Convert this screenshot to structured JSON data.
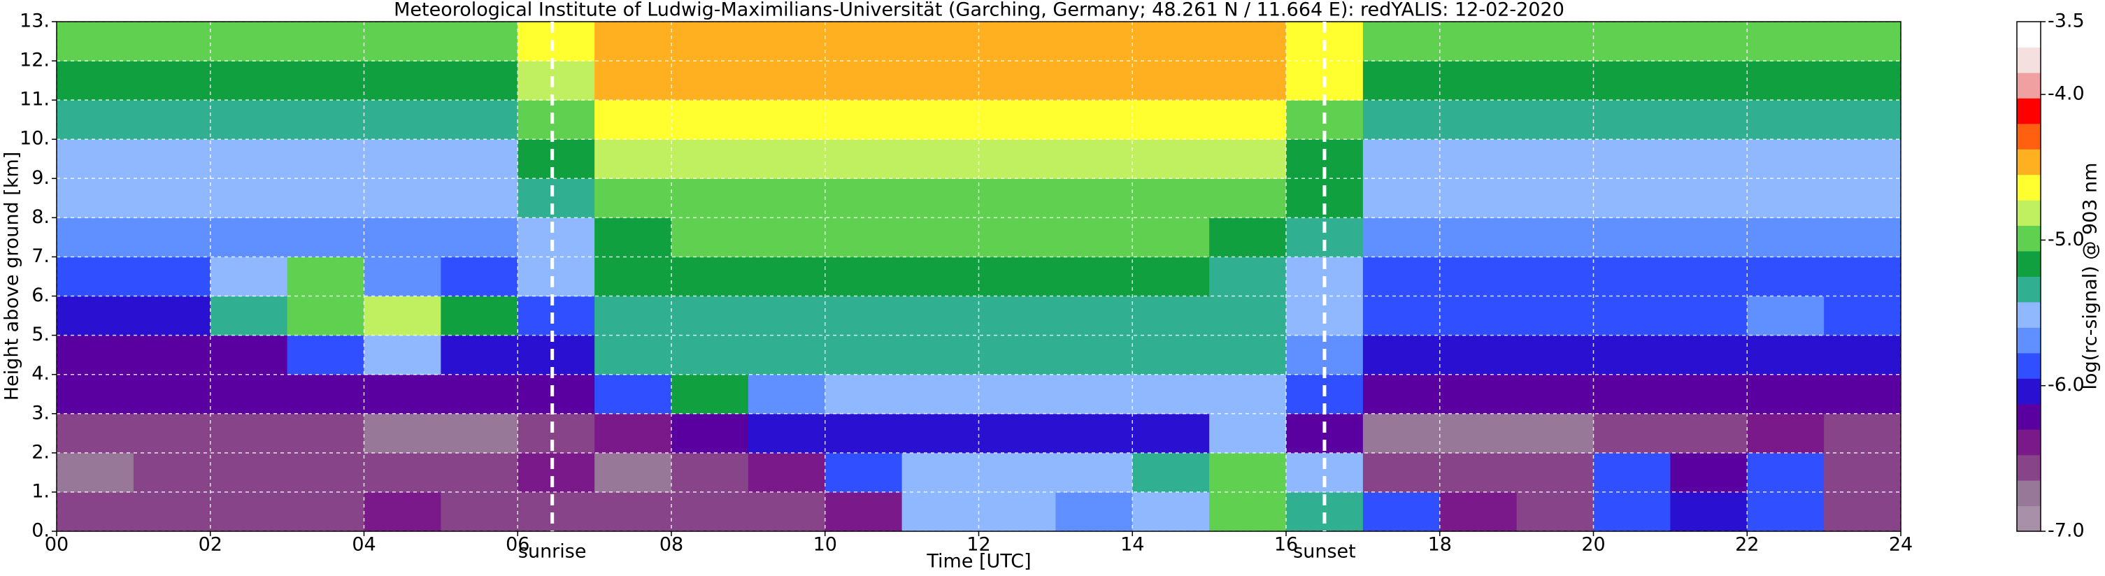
{
  "chart_data": {
    "type": "heatmap",
    "title": "Meteorological Institute of Ludwig-Maximilians-Universität (Garching, Germany; 48.261 N / 11.664 E):    redYALIS: 12-02-2020",
    "x_label": "Time [UTC]",
    "y_label": "Height above ground [km]",
    "colorbar_label": "log(rc-signal) @ 903 nm",
    "xbins": [
      0,
      1,
      2,
      3,
      4,
      5,
      6,
      7,
      8,
      9,
      10,
      11,
      12,
      13,
      14,
      15,
      16,
      17,
      18,
      19,
      20,
      21,
      22,
      23,
      24
    ],
    "ybins": [
      0,
      1,
      2,
      3,
      4,
      5,
      6,
      7,
      8,
      9,
      10,
      11,
      12,
      13
    ],
    "z": [
      [
        -6.6,
        -6.6,
        -6.6,
        -6.5,
        -6.4,
        -6.5,
        -6.5,
        -6.6,
        -6.6,
        -6.5,
        -6.4,
        -5.6,
        -5.5,
        -5.7,
        -5.5,
        -5.0,
        -5.3,
        -5.9,
        -6.4,
        -6.6,
        -5.8,
        -6.1,
        -5.9,
        -6.6
      ],
      [
        -6.7,
        -6.6,
        -6.6,
        -6.6,
        -6.6,
        -6.6,
        -6.4,
        -6.7,
        -6.6,
        -6.4,
        -5.9,
        -5.5,
        -5.6,
        -5.5,
        -5.3,
        -5.0,
        -5.5,
        -6.6,
        -6.6,
        -6.6,
        -5.9,
        -6.3,
        -5.8,
        -6.5
      ],
      [
        -6.6,
        -6.6,
        -6.6,
        -6.6,
        -6.7,
        -6.7,
        -6.6,
        -6.4,
        -6.2,
        -6.1,
        -6.0,
        -6.0,
        -6.0,
        -6.0,
        -6.0,
        -5.6,
        -6.3,
        -6.8,
        -6.8,
        -6.8,
        -6.6,
        -6.6,
        -6.4,
        -6.6
      ],
      [
        -6.3,
        -6.3,
        -6.3,
        -6.3,
        -6.3,
        -6.3,
        -6.2,
        -5.9,
        -5.2,
        -5.7,
        -5.6,
        -5.6,
        -5.6,
        -5.6,
        -5.6,
        -5.5,
        -5.8,
        -6.3,
        -6.3,
        -6.3,
        -6.3,
        -6.3,
        -6.3,
        -6.3
      ],
      [
        -6.2,
        -6.2,
        -6.2,
        -5.8,
        -5.6,
        -6.0,
        -6.0,
        -5.4,
        -5.4,
        -5.4,
        -5.4,
        -5.4,
        -5.4,
        -5.4,
        -5.4,
        -5.4,
        -5.7,
        -6.1,
        -6.1,
        -6.1,
        -6.1,
        -6.1,
        -6.1,
        -6.1
      ],
      [
        -6.0,
        -6.0,
        -5.3,
        -4.9,
        -4.8,
        -5.2,
        -5.8,
        -5.3,
        -5.3,
        -5.3,
        -5.3,
        -5.3,
        -5.3,
        -5.3,
        -5.3,
        -5.3,
        -5.6,
        -5.9,
        -5.9,
        -5.9,
        -5.9,
        -5.9,
        -5.7,
        -5.8
      ],
      [
        -5.8,
        -5.8,
        -5.6,
        -5.0,
        -5.7,
        -5.8,
        -5.6,
        -5.2,
        -5.2,
        -5.2,
        -5.2,
        -5.2,
        -5.2,
        -5.2,
        -5.2,
        -5.3,
        -5.5,
        -5.8,
        -5.8,
        -5.8,
        -5.8,
        -5.8,
        -5.8,
        -5.8
      ],
      [
        -5.7,
        -5.7,
        -5.7,
        -5.7,
        -5.7,
        -5.7,
        -5.5,
        -5.1,
        -5.0,
        -5.0,
        -5.0,
        -5.0,
        -5.0,
        -5.0,
        -5.0,
        -5.1,
        -5.4,
        -5.7,
        -5.7,
        -5.7,
        -5.7,
        -5.7,
        -5.7,
        -5.7
      ],
      [
        -5.6,
        -5.6,
        -5.6,
        -5.6,
        -5.6,
        -5.6,
        -5.3,
        -4.9,
        -4.9,
        -4.9,
        -4.9,
        -4.9,
        -4.9,
        -4.9,
        -4.9,
        -4.9,
        -5.2,
        -5.6,
        -5.6,
        -5.6,
        -5.6,
        -5.6,
        -5.6,
        -5.6
      ],
      [
        -5.5,
        -5.5,
        -5.5,
        -5.5,
        -5.5,
        -5.5,
        -5.2,
        -4.8,
        -4.8,
        -4.8,
        -4.8,
        -4.8,
        -4.8,
        -4.8,
        -4.8,
        -4.8,
        -5.1,
        -5.5,
        -5.5,
        -5.5,
        -5.5,
        -5.5,
        -5.5,
        -5.5
      ],
      [
        -5.3,
        -5.3,
        -5.3,
        -5.3,
        -5.3,
        -5.3,
        -5.0,
        -4.6,
        -4.6,
        -4.6,
        -4.6,
        -4.6,
        -4.6,
        -4.6,
        -4.6,
        -4.6,
        -4.9,
        -5.3,
        -5.3,
        -5.3,
        -5.3,
        -5.3,
        -5.3,
        -5.3
      ],
      [
        -5.1,
        -5.1,
        -5.1,
        -5.1,
        -5.1,
        -5.1,
        -4.8,
        -4.5,
        -4.5,
        -4.5,
        -4.5,
        -4.5,
        -4.5,
        -4.5,
        -4.5,
        -4.5,
        -4.7,
        -5.1,
        -5.1,
        -5.1,
        -5.1,
        -5.1,
        -5.1,
        -5.1
      ],
      [
        -5.0,
        -5.0,
        -5.0,
        -5.0,
        -5.0,
        -5.0,
        -4.7,
        -4.4,
        -4.4,
        -4.4,
        -4.4,
        -4.4,
        -4.4,
        -4.4,
        -4.4,
        -4.4,
        -4.6,
        -5.0,
        -5.0,
        -5.0,
        -5.0,
        -5.0,
        -5.0,
        -5.0
      ]
    ],
    "xlim": [
      0,
      24
    ],
    "ylim": [
      0,
      13
    ],
    "clim": [
      -7,
      -3.5
    ],
    "xticks": [
      {
        "value": 0,
        "label": "00"
      },
      {
        "value": 2,
        "label": "02"
      },
      {
        "value": 4,
        "label": "04"
      },
      {
        "value": 6,
        "label": "06"
      },
      {
        "value": 8,
        "label": "08"
      },
      10,
      12,
      14,
      16,
      18,
      20,
      22,
      24
    ],
    "yticks": [
      {
        "value": 0,
        "label": "0."
      },
      {
        "value": 1,
        "label": "1."
      },
      {
        "value": 2,
        "label": "2."
      },
      {
        "value": 3,
        "label": "3."
      },
      {
        "value": 4,
        "label": "4."
      },
      {
        "value": 5,
        "label": "5."
      },
      {
        "value": 6,
        "label": "6."
      },
      {
        "value": 7,
        "label": "7."
      },
      {
        "value": 8,
        "label": "8."
      },
      {
        "value": 9,
        "label": "9."
      },
      {
        "value": 10,
        "label": "10."
      },
      {
        "value": 11,
        "label": "11."
      },
      {
        "value": 12,
        "label": "12."
      },
      {
        "value": 13,
        "label": "13."
      }
    ],
    "cticks": [
      -3.5,
      {
        "value": -4,
        "label": "-4.0"
      },
      {
        "value": -5,
        "label": "-5.0"
      },
      {
        "value": -6,
        "label": "-6.0"
      },
      {
        "value": -7,
        "label": "-7.0"
      }
    ],
    "colormap": [
      "#a890a8",
      "#987898",
      "#884488",
      "#7a1a8a",
      "#5a00a0",
      "#2a10d0",
      "#3050ff",
      "#6090ff",
      "#90b8ff",
      "#30b090",
      "#10a040",
      "#60d050",
      "#c0f060",
      "#ffff30",
      "#ffb020",
      "#ff6010",
      "#ff0000",
      "#f0a0a0",
      "#f5e0e0",
      "#ffffff"
    ],
    "grid": true,
    "annotations": [
      {
        "text": "sunrise",
        "x": 6.45
      },
      {
        "text": "sunset",
        "x": 16.5
      }
    ]
  }
}
